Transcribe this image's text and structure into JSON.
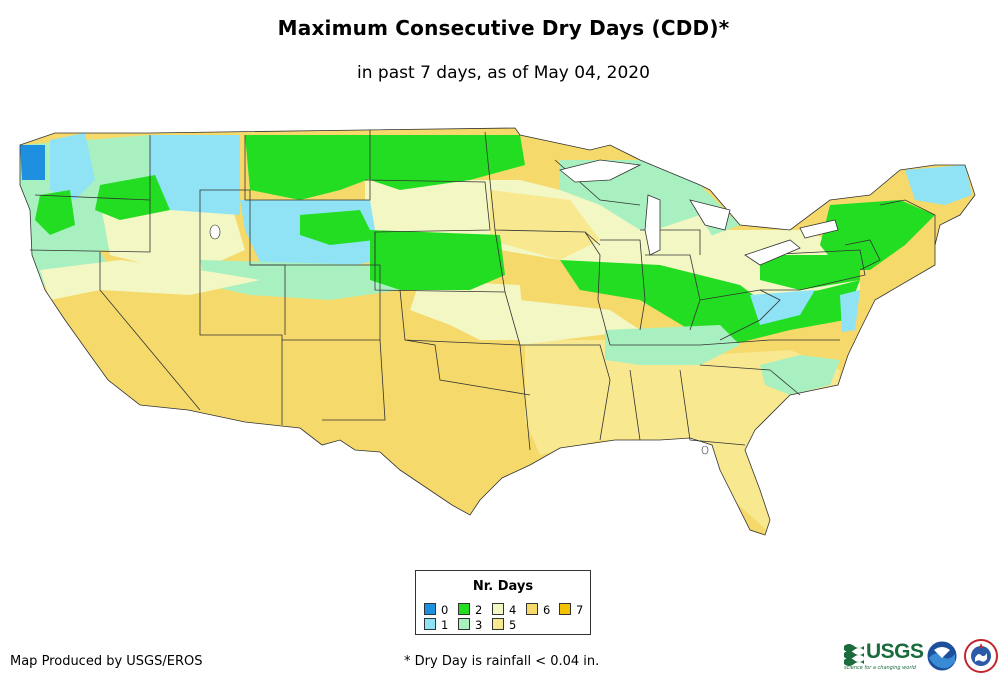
{
  "title": "Maximum Consecutive Dry Days (CDD)*",
  "subtitle": "in past 7 days, as of May 04, 2020",
  "legend": {
    "title": "Nr. Days",
    "items": [
      {
        "label": "0",
        "color": "#1f8fe0"
      },
      {
        "label": "1",
        "color": "#8fe3f5"
      },
      {
        "label": "2",
        "color": "#22dd22"
      },
      {
        "label": "3",
        "color": "#a8f0c0"
      },
      {
        "label": "4",
        "color": "#f2f7c4"
      },
      {
        "label": "5",
        "color": "#f8e890"
      },
      {
        "label": "6",
        "color": "#f5d96a"
      },
      {
        "label": "7",
        "color": "#f2c200"
      }
    ]
  },
  "footer": {
    "producer": "Map Produced by USGS/EROS",
    "note": "* Dry Day is rainfall < 0.04 in."
  },
  "logos": {
    "usgs": "USGS",
    "usgs_tagline": "science for a changing world"
  }
}
